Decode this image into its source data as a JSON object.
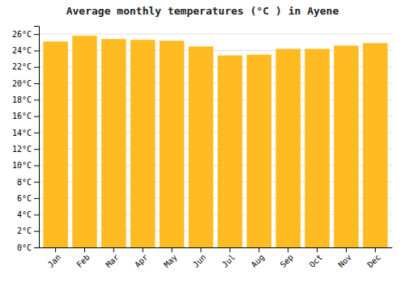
{
  "chart_data": {
    "type": "bar",
    "title": "Average monthly temperatures (°C ) in Ayene",
    "categories": [
      "Jan",
      "Feb",
      "Mar",
      "Apr",
      "May",
      "Jun",
      "Jul",
      "Aug",
      "Sep",
      "Oct",
      "Nov",
      "Dec"
    ],
    "values": [
      25.1,
      25.8,
      25.4,
      25.3,
      25.2,
      24.5,
      23.4,
      23.5,
      24.2,
      24.2,
      24.6,
      24.9
    ],
    "color": "#FFBB22",
    "ylim": [
      0,
      27
    ],
    "yticks": [
      {
        "value": 0,
        "label": "0°C"
      },
      {
        "value": 2,
        "label": "2°C"
      },
      {
        "value": 4,
        "label": "4°C"
      },
      {
        "value": 6,
        "label": "6°C"
      },
      {
        "value": 8,
        "label": "8°C"
      },
      {
        "value": 10,
        "label": "10°C"
      },
      {
        "value": 12,
        "label": "12°C"
      },
      {
        "value": 14,
        "label": "14°C"
      },
      {
        "value": 16,
        "label": "16°C"
      },
      {
        "value": 18,
        "label": "18°C"
      },
      {
        "value": 20,
        "label": "20°C"
      },
      {
        "value": 22,
        "label": "22°C"
      },
      {
        "value": 24,
        "label": "24°C"
      },
      {
        "value": 26,
        "label": "26°C"
      }
    ],
    "grid": true
  }
}
